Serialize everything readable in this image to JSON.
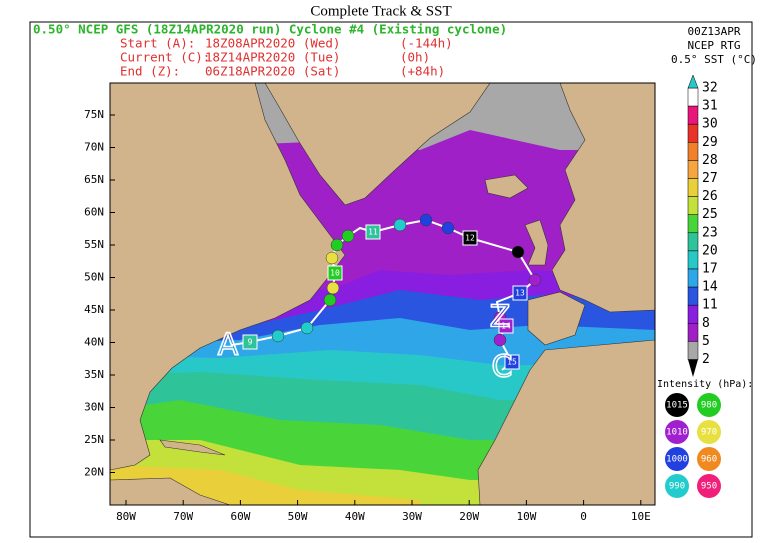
{
  "title": "Complete Track & SST",
  "header": {
    "line1": "0.50° NCEP GFS (18Z14APR2020 run) Cyclone #4 (Existing cyclone)",
    "rows": [
      [
        "Start (A):",
        "18Z08APR2020 (Wed)",
        "(-144h)"
      ],
      [
        "Current (C):",
        "18Z14APR2020 (Tue)",
        "(0h)"
      ],
      [
        "End (Z):",
        "06Z18APR2020 (Sat)",
        "(+84h)"
      ]
    ]
  },
  "sst_header": [
    "00Z13APR",
    "NCEP RTG",
    "0.5° SST (°C)"
  ],
  "sst_scale": {
    "labels": [
      "32",
      "31",
      "30",
      "29",
      "28",
      "27",
      "26",
      "25",
      "23",
      "20",
      "17",
      "14",
      "11",
      "8",
      "5",
      "2"
    ],
    "colors": [
      "#ffffff",
      "#e8157a",
      "#e8322a",
      "#f0802a",
      "#f5a640",
      "#e9cf3a",
      "#c4e03a",
      "#49d53a",
      "#2fc39a",
      "#28c8c8",
      "#2ea6e8",
      "#2a55e0",
      "#8a1ee0",
      "#a020c8",
      "#a8a8a8"
    ]
  },
  "intensity": {
    "title": "Intensity (hPa):",
    "items": [
      {
        "label": "1015",
        "color": "#000000",
        "text_color": "#ffffff"
      },
      {
        "label": "980",
        "color": "#22cc22",
        "text_color": "#ffffff"
      },
      {
        "label": "1010",
        "color": "#a020d0",
        "text_color": "#ffffff"
      },
      {
        "label": "970",
        "color": "#e8e040",
        "text_color": "#ffffff"
      },
      {
        "label": "1000",
        "color": "#2040e0",
        "text_color": "#ffffff"
      },
      {
        "label": "960",
        "color": "#f08a20",
        "text_color": "#ffffff"
      },
      {
        "label": "990",
        "color": "#22cccc",
        "text_color": "#ffffff"
      },
      {
        "label": "950",
        "color": "#f0207a",
        "text_color": "#ffffff"
      }
    ]
  },
  "lon_labels": [
    "80W",
    "70W",
    "60W",
    "50W",
    "40W",
    "30W",
    "20W",
    "10W",
    "0",
    "10E"
  ],
  "lat_labels": [
    "75N",
    "70N",
    "65N",
    "60N",
    "55N",
    "50N",
    "45N",
    "40N",
    "35N",
    "30N",
    "25N",
    "20N"
  ],
  "track": {
    "start": "A",
    "current": "C",
    "end": "Z",
    "days": [
      "9",
      "10",
      "11",
      "12",
      "13",
      "14",
      "15"
    ]
  }
}
